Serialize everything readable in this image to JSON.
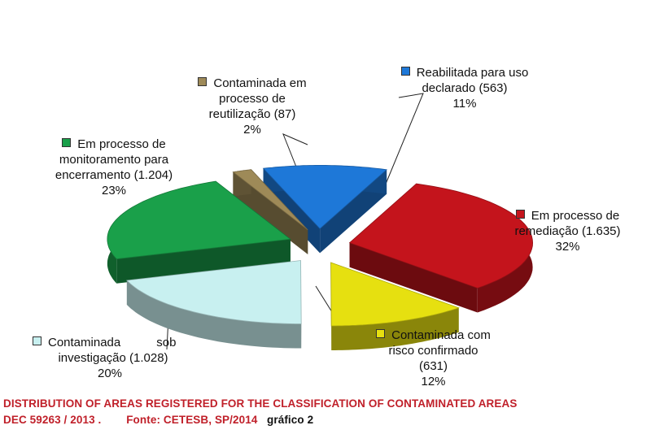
{
  "chart_data": {
    "type": "pie",
    "style": "3d-exploded",
    "slices": [
      {
        "label": "Reabilitada para uso declarado",
        "count": "(563)",
        "percent": "11%",
        "value": 563,
        "color": "#1e78d8"
      },
      {
        "label": "Em processo de remediação",
        "count": "(1.635)",
        "percent": "32%",
        "value": 1635,
        "color": "#c4141c"
      },
      {
        "label": "Contaminada com risco confirmado",
        "count": "(631)",
        "percent": "12%",
        "value": 631,
        "color": "#e6e010"
      },
      {
        "label": "Contaminada sob investigação",
        "count": "(1.028)",
        "percent": "20%",
        "value": 1028,
        "color": "#c8f0f0"
      },
      {
        "label": "Em processo de monitoramento para encerramento",
        "count": "(1.204)",
        "percent": "23%",
        "value": 1204,
        "color": "#1aa04a"
      },
      {
        "label": "Contaminada em processo de reutilização",
        "count": "(87)",
        "percent": "2%",
        "value": 87,
        "color": "#9e8a58"
      }
    ]
  },
  "labels": {
    "reabilitada": {
      "l1": "Reabilitada para uso",
      "l2": "declarado (563)",
      "l3": "11%"
    },
    "remediacao": {
      "l1": "Em processo de",
      "l2": "remediação (1.635)",
      "l3": "32%"
    },
    "risco": {
      "l1": "Contaminada com",
      "l2": "risco confirmado",
      "l3": "(631)",
      "l4": "12%"
    },
    "investigacao": {
      "l1a": "Contaminada",
      "l1b": "sob",
      "l2": "investigação (1.028)",
      "l3": "20%"
    },
    "monitoramento": {
      "l1": "Em processo de",
      "l2": "monitoramento para",
      "l3": "encerramento (1.204)",
      "l4": "23%"
    },
    "reutilizacao": {
      "l1": "Contaminada em",
      "l2": "processo de",
      "l3": "reutilização (87)",
      "l4": "2%"
    }
  },
  "caption": {
    "line1": "DISTRIBUTION OF AREAS REGISTERED FOR THE CLASSIFICATION OF CONTAMINATED AREAS",
    "line2_a": "DEC 59263 / 2013 .",
    "line2_b": "Fonte: CETESB, SP/2014",
    "line2_c": "gráfico 2"
  }
}
